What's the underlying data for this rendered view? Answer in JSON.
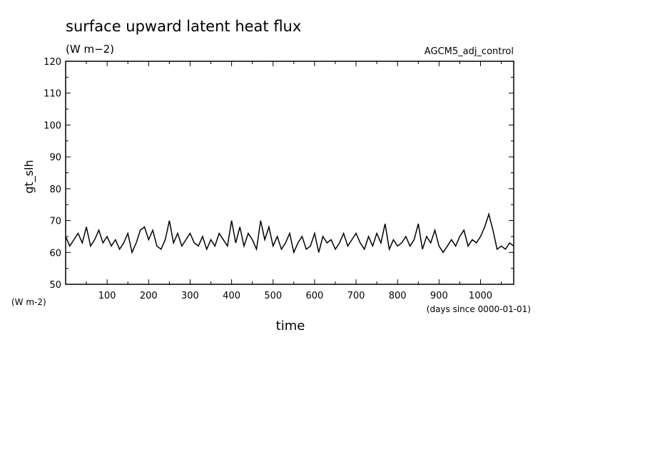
{
  "chart_data": {
    "type": "line",
    "title": "surface upward latent heat flux",
    "subtitle": "(W m−2)",
    "run_label": "AGCM5_adj_control",
    "xlabel": "time",
    "x_units": "(days since 0000-01-01)",
    "ylabel": "gt_slh",
    "y_units": "(W m-2)",
    "xlim": [
      0,
      1080
    ],
    "ylim": [
      50,
      120
    ],
    "x_ticks": [
      100,
      200,
      300,
      400,
      500,
      600,
      700,
      800,
      900,
      1000
    ],
    "y_ticks": [
      50,
      60,
      70,
      80,
      90,
      100,
      110,
      120
    ],
    "grid": false,
    "series": [
      {
        "x": [
          0,
          10,
          20,
          30,
          40,
          50,
          60,
          70,
          80,
          90,
          100,
          110,
          120,
          130,
          140,
          150,
          160,
          170,
          180,
          190,
          200,
          210,
          220,
          230,
          240,
          250,
          260,
          270,
          280,
          290,
          300,
          310,
          320,
          330,
          340,
          350,
          360,
          370,
          380,
          390,
          400,
          410,
          420,
          430,
          440,
          450,
          460,
          470,
          480,
          490,
          500,
          510,
          520,
          530,
          540,
          550,
          560,
          570,
          580,
          590,
          600,
          610,
          620,
          630,
          640,
          650,
          660,
          670,
          680,
          690,
          700,
          710,
          720,
          730,
          740,
          750,
          760,
          770,
          780,
          790,
          800,
          810,
          820,
          830,
          840,
          850,
          860,
          870,
          880,
          890,
          900,
          910,
          920,
          930,
          940,
          950,
          960,
          970,
          980,
          990,
          1000,
          1010,
          1020,
          1030,
          1040,
          1050,
          1060,
          1070,
          1080
        ],
        "y": [
          65,
          62,
          64,
          66,
          63,
          68,
          62,
          64,
          67,
          63,
          65,
          62,
          64,
          61,
          63,
          66,
          60,
          63,
          67,
          68,
          64,
          67,
          62,
          61,
          64,
          70,
          63,
          66,
          62,
          64,
          66,
          63,
          62,
          65,
          61,
          64,
          62,
          66,
          64,
          62,
          70,
          63,
          68,
          62,
          66,
          64,
          61,
          70,
          64,
          68,
          62,
          65,
          61,
          63,
          66,
          60,
          63,
          65,
          61,
          62,
          66,
          60,
          65,
          63,
          64,
          61,
          63,
          66,
          62,
          64,
          66,
          63,
          61,
          65,
          62,
          66,
          63,
          69,
          61,
          64,
          62,
          63,
          65,
          62,
          64,
          69,
          61,
          65,
          63,
          67,
          62,
          60,
          62,
          64,
          62,
          65,
          67,
          62,
          64,
          63,
          65,
          68,
          72,
          67,
          61,
          62,
          61,
          63,
          62
        ]
      }
    ]
  }
}
